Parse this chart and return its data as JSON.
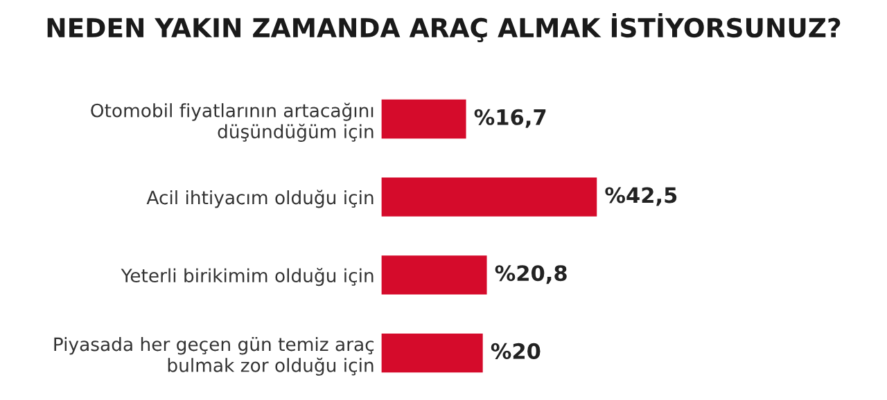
{
  "chart_data": {
    "type": "bar",
    "orientation": "horizontal",
    "title": "NEDEN YAKIN ZAMANDA ARAÇ ALMAK İSTİYORSUNUZ?",
    "categories": [
      "Otomobil fiyatlarının artacağını\ndüşündüğüm için",
      "Acil ihtiyacım olduğu için",
      "Yeterli birikimim olduğu için",
      "Piyasada her geçen gün temiz araç\nbulmak zor olduğu için"
    ],
    "values": [
      16.7,
      42.5,
      20.8,
      20
    ],
    "value_labels": [
      "%16,7",
      "%42,5",
      "%20,8",
      "%20"
    ],
    "color": "#d50b2b",
    "tick_labels": "y",
    "grid": false,
    "legend": false
  }
}
